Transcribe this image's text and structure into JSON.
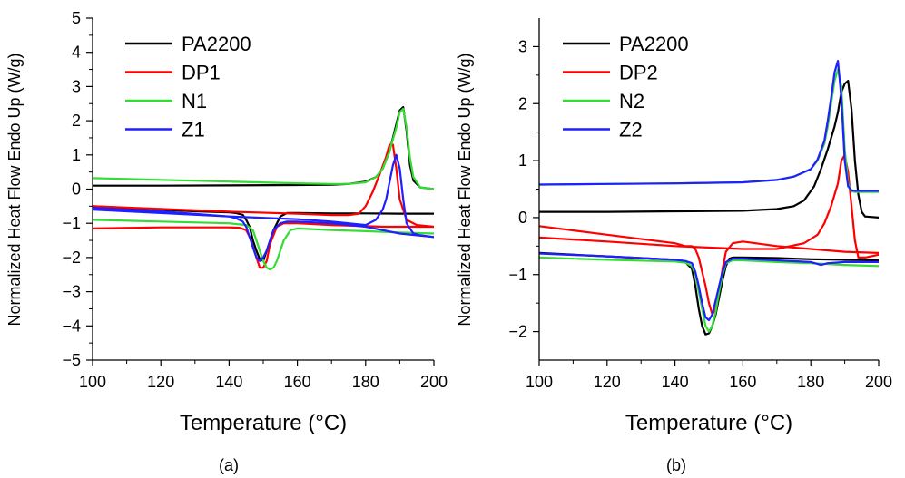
{
  "chart_data": [
    {
      "type": "line",
      "panel_label": "(a)",
      "xlabel": "Temperature (°C)",
      "ylabel": "Normalized Heat Flow Endo Up (W/g)",
      "xlim": [
        100,
        200
      ],
      "ylim": [
        -5,
        5
      ],
      "xticks": [
        100,
        120,
        140,
        160,
        180,
        200
      ],
      "yticks": [
        -5,
        -4,
        -3,
        -2,
        -1,
        0,
        1,
        2,
        3,
        4,
        5
      ],
      "ytick_labels": [
        "−5",
        "−4",
        "−3",
        "−2",
        "−1",
        "0",
        "1",
        "2",
        "3",
        "4",
        "5"
      ],
      "grid": false,
      "legend": "top-left",
      "series": [
        {
          "name": "PA2200",
          "color": "#000000",
          "segments": [
            {
              "x": [
                100,
                120,
                140,
                160,
                170,
                175,
                180,
                183,
                185,
                187,
                189,
                190,
                191,
                192,
                193,
                194,
                196,
                200
              ],
              "y": [
                0.1,
                0.1,
                0.11,
                0.12,
                0.13,
                0.15,
                0.22,
                0.35,
                0.6,
                1.1,
                1.9,
                2.3,
                2.4,
                1.7,
                0.7,
                0.25,
                0.05,
                0.0
              ]
            },
            {
              "x": [
                200,
                190,
                180,
                170,
                160,
                157,
                155,
                153,
                151,
                150,
                149,
                148,
                147,
                146,
                145,
                144,
                142,
                140,
                130,
                120,
                100
              ],
              "y": [
                -0.72,
                -0.72,
                -0.71,
                -0.71,
                -0.7,
                -0.7,
                -0.8,
                -1.2,
                -1.8,
                -2.1,
                -2.05,
                -1.8,
                -1.5,
                -1.1,
                -0.9,
                -0.75,
                -0.7,
                -0.68,
                -0.65,
                -0.6,
                -0.5
              ]
            }
          ]
        },
        {
          "name": "DP1",
          "color": "#ff0000",
          "segments": [
            {
              "x": [
                100,
                120,
                140,
                160,
                170,
                175,
                178,
                180,
                182,
                184,
                186,
                187,
                188,
                189,
                190,
                192,
                195,
                200
              ],
              "y": [
                -0.5,
                -0.58,
                -0.66,
                -0.72,
                -0.76,
                -0.76,
                -0.72,
                -0.5,
                -0.1,
                0.4,
                0.95,
                1.3,
                1.3,
                0.6,
                -0.3,
                -0.9,
                -1.05,
                -1.1
              ]
            },
            {
              "x": [
                200,
                185,
                170,
                160,
                156,
                154,
                152,
                151,
                150,
                149,
                148,
                147,
                146,
                145,
                143,
                140,
                130,
                120,
                100
              ],
              "y": [
                -1.1,
                -1.1,
                -1.05,
                -1.0,
                -1.0,
                -1.1,
                -1.6,
                -2.1,
                -2.3,
                -2.3,
                -2.0,
                -1.7,
                -1.4,
                -1.2,
                -1.13,
                -1.12,
                -1.12,
                -1.12,
                -1.15
              ]
            }
          ]
        },
        {
          "name": "N1",
          "color": "#33dd33",
          "segments": [
            {
              "x": [
                100,
                120,
                140,
                160,
                170,
                175,
                180,
                183,
                185,
                187,
                189,
                190,
                191,
                192,
                193,
                194,
                196,
                200
              ],
              "y": [
                0.32,
                0.27,
                0.22,
                0.17,
                0.15,
                0.15,
                0.2,
                0.35,
                0.6,
                1.1,
                1.8,
                2.25,
                2.35,
                1.8,
                0.9,
                0.35,
                0.05,
                0.0
              ]
            },
            {
              "x": [
                200,
                190,
                180,
                170,
                160,
                158,
                156,
                155,
                154,
                153,
                152,
                151,
                150,
                149,
                148,
                147,
                145,
                140,
                120,
                100
              ],
              "y": [
                -1.3,
                -1.27,
                -1.23,
                -1.2,
                -1.15,
                -1.2,
                -1.5,
                -1.8,
                -2.1,
                -2.3,
                -2.35,
                -2.3,
                -2.1,
                -1.8,
                -1.5,
                -1.2,
                -1.05,
                -1.0,
                -0.95,
                -0.9
              ]
            }
          ]
        },
        {
          "name": "Z1",
          "color": "#1f1fff",
          "segments": [
            {
              "x": [
                100,
                120,
                140,
                160,
                170,
                175,
                180,
                183,
                185,
                186,
                187,
                188,
                189,
                190,
                191,
                192,
                194,
                196,
                200
              ],
              "y": [
                -0.6,
                -0.7,
                -0.8,
                -0.88,
                -0.95,
                -1.0,
                -1.05,
                -0.9,
                -0.6,
                -0.3,
                0.2,
                0.7,
                1.0,
                0.6,
                -0.3,
                -1.0,
                -1.3,
                -1.35,
                -1.4
              ]
            },
            {
              "x": [
                200,
                190,
                180,
                170,
                160,
                157,
                155,
                153,
                152,
                151,
                150,
                149,
                148,
                147,
                146,
                145,
                144,
                142,
                140,
                120,
                100
              ],
              "y": [
                -1.4,
                -1.3,
                -1.1,
                -1.0,
                -0.95,
                -0.95,
                -1.0,
                -1.2,
                -1.5,
                -1.8,
                -2.0,
                -2.1,
                -2.0,
                -1.7,
                -1.4,
                -1.1,
                -0.95,
                -0.85,
                -0.8,
                -0.65,
                -0.55
              ]
            }
          ]
        }
      ]
    },
    {
      "type": "line",
      "panel_label": "(b)",
      "xlabel": "Temperature (°C)",
      "ylabel": "Normalized Heat Flow Endo Up (W/g)",
      "xlim": [
        100,
        200
      ],
      "ylim": [
        -2.5,
        3.5
      ],
      "xticks": [
        100,
        120,
        140,
        160,
        180,
        200
      ],
      "yticks": [
        -2,
        -1,
        0,
        1,
        2,
        3
      ],
      "ytick_labels": [
        "−2",
        "−1",
        "0",
        "1",
        "2",
        "3"
      ],
      "grid": false,
      "legend": "top-left",
      "series": [
        {
          "name": "PA2200",
          "color": "#000000",
          "segments": [
            {
              "x": [
                100,
                120,
                140,
                160,
                170,
                175,
                178,
                181,
                183,
                185,
                187,
                188,
                189,
                190,
                191,
                192,
                193,
                194,
                195,
                196,
                200
              ],
              "y": [
                0.1,
                0.1,
                0.11,
                0.12,
                0.15,
                0.2,
                0.3,
                0.55,
                0.85,
                1.2,
                1.6,
                1.85,
                2.2,
                2.35,
                2.4,
                1.9,
                1.0,
                0.4,
                0.1,
                0.02,
                0.0
              ]
            },
            {
              "x": [
                200,
                190,
                180,
                170,
                160,
                157,
                156,
                155,
                154,
                153,
                152,
                151,
                150,
                149,
                148,
                147,
                146,
                145,
                143,
                140,
                120,
                100
              ],
              "y": [
                -0.75,
                -0.74,
                -0.73,
                -0.71,
                -0.7,
                -0.7,
                -0.72,
                -0.85,
                -1.1,
                -1.4,
                -1.7,
                -1.9,
                -2.03,
                -2.05,
                -1.9,
                -1.6,
                -1.2,
                -0.9,
                -0.78,
                -0.74,
                -0.68,
                -0.62
              ]
            }
          ]
        },
        {
          "name": "DP2",
          "color": "#ff0000",
          "segments": [
            {
              "x": [
                100,
                120,
                140,
                160,
                170,
                178,
                182,
                184,
                186,
                188,
                189,
                190,
                191,
                192,
                193,
                194,
                196,
                200
              ],
              "y": [
                -0.35,
                -0.42,
                -0.5,
                -0.55,
                -0.55,
                -0.45,
                -0.3,
                -0.1,
                0.2,
                0.6,
                1.0,
                1.1,
                0.8,
                0.2,
                -0.4,
                -0.7,
                -0.7,
                -0.65
              ]
            },
            {
              "x": [
                200,
                190,
                180,
                170,
                160,
                157,
                155,
                154,
                153,
                152,
                151,
                150,
                149,
                148,
                147,
                146,
                145,
                143,
                140,
                120,
                100
              ],
              "y": [
                -0.62,
                -0.6,
                -0.55,
                -0.5,
                -0.42,
                -0.45,
                -0.6,
                -0.9,
                -1.3,
                -1.6,
                -1.7,
                -1.5,
                -1.2,
                -0.95,
                -0.7,
                -0.55,
                -0.5,
                -0.5,
                -0.45,
                -0.3,
                -0.15
              ]
            }
          ]
        },
        {
          "name": "N2",
          "color": "#33dd33",
          "segments": [
            {
              "x": [
                100,
                120,
                140,
                160,
                170,
                175,
                180,
                182,
                184,
                185,
                186,
                187,
                188,
                189,
                190,
                191,
                192,
                193,
                195,
                200
              ],
              "y": [
                0.58,
                0.59,
                0.6,
                0.62,
                0.66,
                0.72,
                0.85,
                1.0,
                1.3,
                1.6,
                2.0,
                2.4,
                2.6,
                2.3,
                1.2,
                0.6,
                0.46,
                0.45,
                0.45,
                0.45
              ]
            },
            {
              "x": [
                200,
                190,
                180,
                170,
                160,
                157,
                155,
                154,
                153,
                152,
                151,
                150,
                149,
                148,
                147,
                146,
                145,
                143,
                140,
                120,
                100
              ],
              "y": [
                -0.85,
                -0.83,
                -0.8,
                -0.78,
                -0.75,
                -0.75,
                -0.8,
                -1.0,
                -1.3,
                -1.65,
                -1.9,
                -2.0,
                -1.9,
                -1.6,
                -1.3,
                -1.0,
                -0.85,
                -0.79,
                -0.77,
                -0.74,
                -0.7
              ]
            }
          ]
        },
        {
          "name": "Z2",
          "color": "#1f1fff",
          "segments": [
            {
              "x": [
                100,
                120,
                140,
                160,
                170,
                175,
                180,
                182,
                184,
                185,
                186,
                187,
                188,
                189,
                190,
                191,
                192,
                193,
                195,
                200
              ],
              "y": [
                0.58,
                0.59,
                0.6,
                0.62,
                0.66,
                0.72,
                0.85,
                1.02,
                1.35,
                1.7,
                2.1,
                2.55,
                2.75,
                2.1,
                1.0,
                0.55,
                0.48,
                0.47,
                0.47,
                0.47
              ]
            },
            {
              "x": [
                200,
                190,
                185,
                183,
                180,
                170,
                160,
                157,
                155,
                154,
                153,
                152,
                151,
                150,
                149,
                148,
                147,
                146,
                145,
                143,
                140,
                120,
                100
              ],
              "y": [
                -0.78,
                -0.78,
                -0.8,
                -0.83,
                -0.78,
                -0.75,
                -0.72,
                -0.72,
                -0.78,
                -0.95,
                -1.2,
                -1.45,
                -1.7,
                -1.8,
                -1.75,
                -1.5,
                -1.2,
                -0.95,
                -0.8,
                -0.76,
                -0.74,
                -0.68,
                -0.63
              ]
            }
          ]
        }
      ]
    }
  ]
}
